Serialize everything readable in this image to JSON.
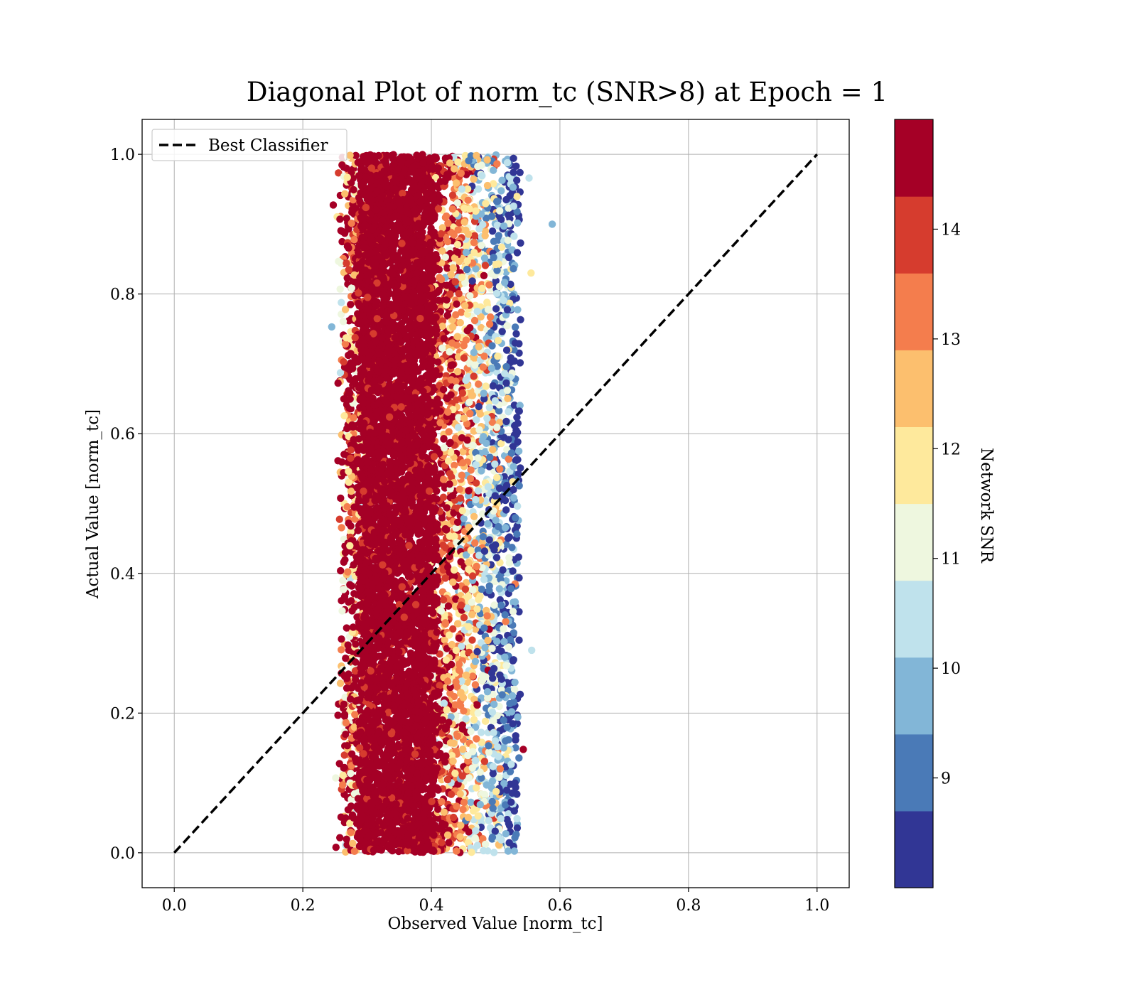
{
  "chart_data": {
    "type": "scatter",
    "title": "Diagonal Plot of norm_tc (SNR>8) at Epoch = 1",
    "xlabel": "Observed Value [norm_tc]",
    "ylabel": "Actual Value [norm_tc]",
    "xlim": [
      -0.05,
      1.05
    ],
    "ylim": [
      -0.05,
      1.05
    ],
    "x_ticks": [
      0.0,
      0.2,
      0.4,
      0.6,
      0.8,
      1.0
    ],
    "y_ticks": [
      0.0,
      0.2,
      0.4,
      0.6,
      0.8,
      1.0
    ],
    "x_tick_labels": [
      "0.0",
      "0.2",
      "0.4",
      "0.6",
      "0.8",
      "1.0"
    ],
    "y_tick_labels": [
      "0.0",
      "0.2",
      "0.4",
      "0.6",
      "0.8",
      "1.0"
    ],
    "grid": true,
    "legend": {
      "position": "upper-left",
      "entries": [
        "Best Classifier"
      ]
    },
    "reference_line": {
      "name": "Best Classifier",
      "style": "dashed",
      "color": "#000000",
      "x": [
        0.0,
        1.0
      ],
      "y": [
        0.0,
        1.0
      ]
    },
    "scatter_summary": {
      "observed_range": [
        0.25,
        0.59
      ],
      "dense_core_observed_range": [
        0.29,
        0.4
      ],
      "actual_range": [
        0.0,
        1.0
      ],
      "outliers": [
        {
          "x": 0.588,
          "y": 0.9,
          "snr": 9.8
        },
        {
          "x": 0.556,
          "y": 0.29,
          "snr": 10.4
        },
        {
          "x": 0.555,
          "y": 0.83,
          "snr": 11.8
        },
        {
          "x": 0.552,
          "y": 0.966,
          "snr": 10.4
        },
        {
          "x": 0.245,
          "y": 0.753,
          "snr": 10.0
        },
        {
          "x": 0.536,
          "y": 0.575,
          "snr": 9.8
        },
        {
          "x": 0.543,
          "y": 0.148,
          "snr": 14.5
        }
      ]
    },
    "colorbar": {
      "label": "Network SNR",
      "range": [
        8.0,
        15.0
      ],
      "ticks": [
        9,
        10,
        11,
        12,
        13,
        14
      ],
      "tick_labels": [
        "9",
        "10",
        "11",
        "12",
        "13",
        "14"
      ],
      "colors": [
        "#313695",
        "#4a7ab7",
        "#82b6d7",
        "#bfe2ec",
        "#eef7df",
        "#fee99c",
        "#fcbf6e",
        "#f47d4d",
        "#d63c2e",
        "#a50026"
      ]
    }
  }
}
